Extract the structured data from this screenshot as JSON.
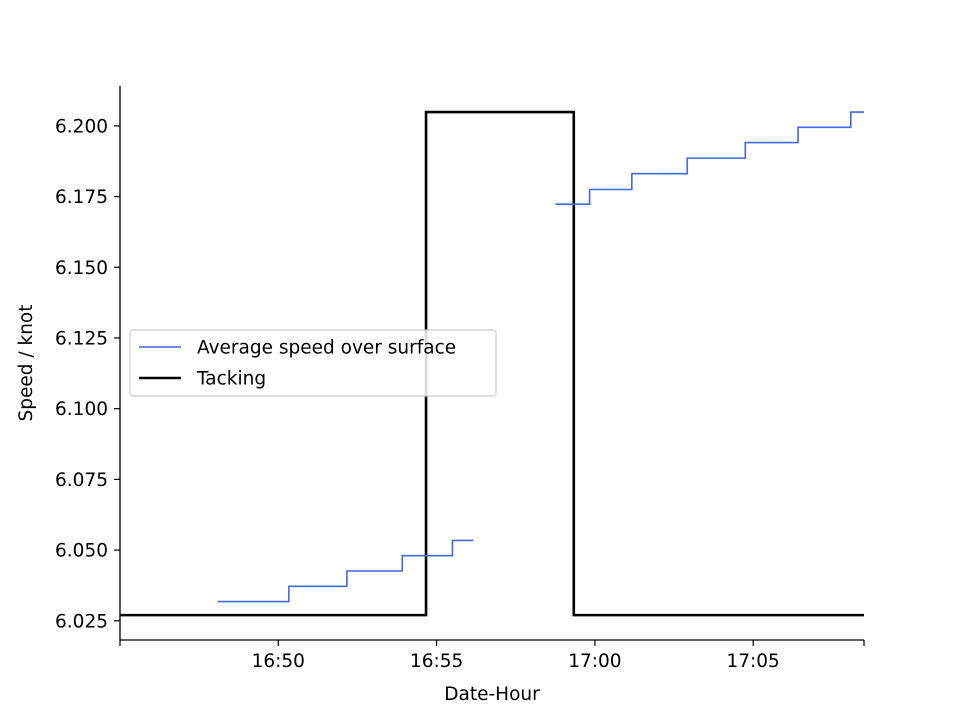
{
  "chart_data": {
    "type": "line",
    "xlabel": "Date-Hour",
    "ylabel": "Speed / knot",
    "xlim": [
      "16:45:00",
      "17:08:30"
    ],
    "ylim": [
      6.0182,
      6.2141
    ],
    "grid": false,
    "legend_position": "center-left",
    "x_ticks": [
      "16:45",
      "16:50",
      "16:55",
      "17:00",
      "17:05",
      "17:08:30"
    ],
    "x_tick_labels": [
      "",
      "16:50",
      "16:55",
      "17:00",
      "17:05",
      ""
    ],
    "y_ticks": [
      6.025,
      6.05,
      6.075,
      6.1,
      6.125,
      6.15,
      6.175,
      6.2
    ],
    "y_tick_labels": [
      "6.025",
      "6.050",
      "6.075",
      "6.100",
      "6.125",
      "6.150",
      "6.175",
      "6.200"
    ],
    "series": [
      {
        "name": "Average speed over surface",
        "color": "#4169e1",
        "step": "post",
        "segments": [
          {
            "x": [
              "16:48:05",
              "16:50:20",
              "16:52:10",
              "16:53:55",
              "16:55:30",
              "16:56:10"
            ],
            "y": [
              6.0318,
              6.0372,
              6.0426,
              6.048,
              6.0534,
              6.0534
            ]
          },
          {
            "x": [
              "16:58:45",
              "16:59:50",
              "17:01:10",
              "17:02:55",
              "17:04:45",
              "17:06:25",
              "17:08:05",
              "17:08:30"
            ],
            "y": [
              6.1723,
              6.1775,
              6.1831,
              6.1886,
              6.1941,
              6.1995,
              6.2049,
              6.2049
            ]
          }
        ]
      },
      {
        "name": "Tacking",
        "color": "#000000",
        "step": "post",
        "x": [
          "16:45:00",
          "16:54:40",
          "16:59:20",
          "17:08:30"
        ],
        "y": [
          6.027,
          6.2049,
          6.027,
          6.027
        ]
      }
    ]
  }
}
